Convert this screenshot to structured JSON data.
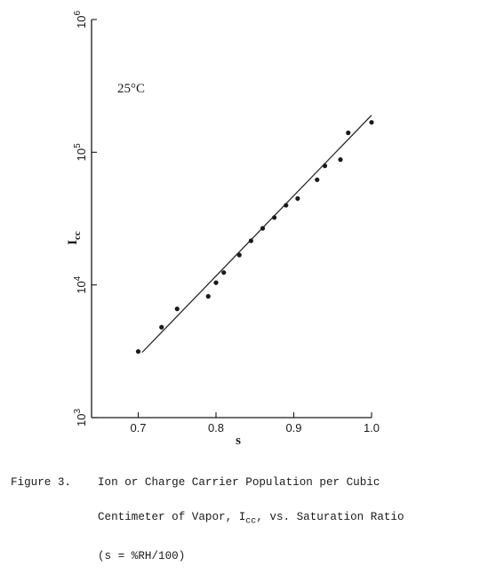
{
  "chart_data": {
    "type": "scatter",
    "title": "",
    "annotation": "25°C",
    "xlabel": "s",
    "ylabel": "I",
    "ylabel_sub": "cc",
    "xlim": [
      0.64,
      1.0
    ],
    "ylim": [
      1000,
      1000000
    ],
    "yscale": "log",
    "xticks": [
      {
        "value": 0.7,
        "label": "0.7"
      },
      {
        "value": 0.8,
        "label": "0.8"
      },
      {
        "value": 0.9,
        "label": "0.9"
      },
      {
        "value": 1.0,
        "label": "1.0"
      }
    ],
    "yticks": [
      {
        "value": 1000,
        "base": "10",
        "exp": "3"
      },
      {
        "value": 10000,
        "base": "10",
        "exp": "4"
      },
      {
        "value": 100000,
        "base": "10",
        "exp": "5"
      },
      {
        "value": 1000000,
        "base": "10",
        "exp": "6"
      }
    ],
    "grid": false,
    "points": [
      {
        "x": 0.7,
        "y": 3150
      },
      {
        "x": 0.73,
        "y": 4800
      },
      {
        "x": 0.75,
        "y": 6600
      },
      {
        "x": 0.79,
        "y": 8200
      },
      {
        "x": 0.8,
        "y": 10400
      },
      {
        "x": 0.81,
        "y": 12400
      },
      {
        "x": 0.83,
        "y": 16800
      },
      {
        "x": 0.845,
        "y": 21500
      },
      {
        "x": 0.86,
        "y": 26700
      },
      {
        "x": 0.875,
        "y": 32200
      },
      {
        "x": 0.89,
        "y": 39800
      },
      {
        "x": 0.905,
        "y": 44800
      },
      {
        "x": 0.93,
        "y": 62000
      },
      {
        "x": 0.94,
        "y": 79000
      },
      {
        "x": 0.96,
        "y": 88000
      },
      {
        "x": 0.97,
        "y": 140000
      },
      {
        "x": 1.0,
        "y": 168000
      }
    ],
    "fit_line": [
      {
        "x": 0.705,
        "y": 3100
      },
      {
        "x": 1.0,
        "y": 190000
      }
    ]
  },
  "caption": {
    "label": "Figure 3.",
    "line1": "Ion or Charge Carrier Population per Cubic",
    "line2_before": "Centimeter of Vapor, I",
    "line2_sub": "cc",
    "line2_after": ", vs. Saturation Ratio",
    "line3": "(s = %RH/100)"
  }
}
